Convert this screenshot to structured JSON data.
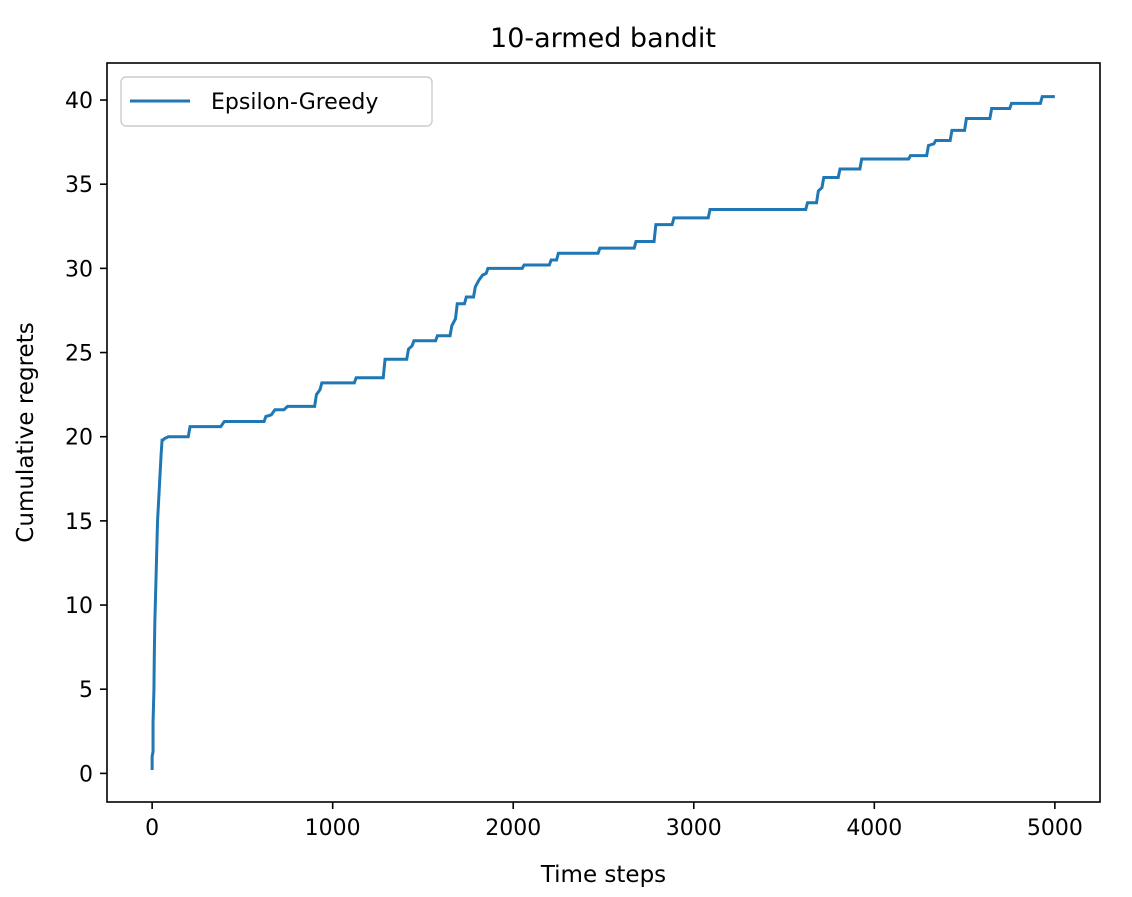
{
  "chart_data": {
    "type": "line",
    "title": "10-armed bandit",
    "xlabel": "Time steps",
    "ylabel": "Cumulative regrets",
    "xlim": [
      -250,
      5250
    ],
    "ylim": [
      -1.7,
      42.2
    ],
    "xticks": [
      0,
      1000,
      2000,
      3000,
      4000,
      5000
    ],
    "yticks": [
      0,
      5,
      10,
      15,
      20,
      25,
      30,
      35,
      40
    ],
    "grid": false,
    "legend_position": "top-left",
    "series": [
      {
        "name": "Epsilon-Greedy",
        "color": "#1f77b4",
        "x": [
          0,
          0,
          5,
          5,
          10,
          12,
          15,
          20,
          25,
          30,
          40,
          50,
          55,
          60,
          70,
          90,
          100,
          200,
          210,
          380,
          400,
          620,
          630,
          660,
          680,
          730,
          750,
          900,
          910,
          930,
          940,
          1120,
          1130,
          1280,
          1290,
          1410,
          1420,
          1440,
          1450,
          1570,
          1580,
          1650,
          1660,
          1680,
          1690,
          1730,
          1740,
          1780,
          1790,
          1810,
          1830,
          1850,
          1860,
          2050,
          2060,
          2200,
          2210,
          2240,
          2250,
          2470,
          2480,
          2670,
          2680,
          2780,
          2790,
          2880,
          2890,
          3080,
          3090,
          3620,
          3630,
          3680,
          3690,
          3710,
          3720,
          3800,
          3810,
          3920,
          3930,
          4190,
          4200,
          4290,
          4300,
          4330,
          4340,
          4420,
          4430,
          4500,
          4510,
          4640,
          4650,
          4750,
          4760,
          4920,
          4930,
          5000
        ],
        "y": [
          0.2,
          1.0,
          1.3,
          3.0,
          5.0,
          7.0,
          9.0,
          11.0,
          13.0,
          15.0,
          17.0,
          19.0,
          19.8,
          19.8,
          19.9,
          20.0,
          20.0,
          20.0,
          20.6,
          20.6,
          20.9,
          20.9,
          21.2,
          21.3,
          21.6,
          21.6,
          21.8,
          21.8,
          22.5,
          22.8,
          23.2,
          23.2,
          23.5,
          23.5,
          24.6,
          24.6,
          25.2,
          25.4,
          25.7,
          25.7,
          26.0,
          26.0,
          26.6,
          27.0,
          27.9,
          27.9,
          28.3,
          28.3,
          28.9,
          29.3,
          29.6,
          29.7,
          30.0,
          30.0,
          30.2,
          30.2,
          30.5,
          30.5,
          30.9,
          30.9,
          31.2,
          31.2,
          31.6,
          31.6,
          32.6,
          32.6,
          33.0,
          33.0,
          33.5,
          33.5,
          33.9,
          33.9,
          34.6,
          34.8,
          35.4,
          35.4,
          35.9,
          35.9,
          36.5,
          36.5,
          36.7,
          36.7,
          37.3,
          37.4,
          37.6,
          37.6,
          38.2,
          38.2,
          38.9,
          38.9,
          39.5,
          39.5,
          39.8,
          39.8,
          40.2,
          40.2
        ]
      }
    ]
  }
}
